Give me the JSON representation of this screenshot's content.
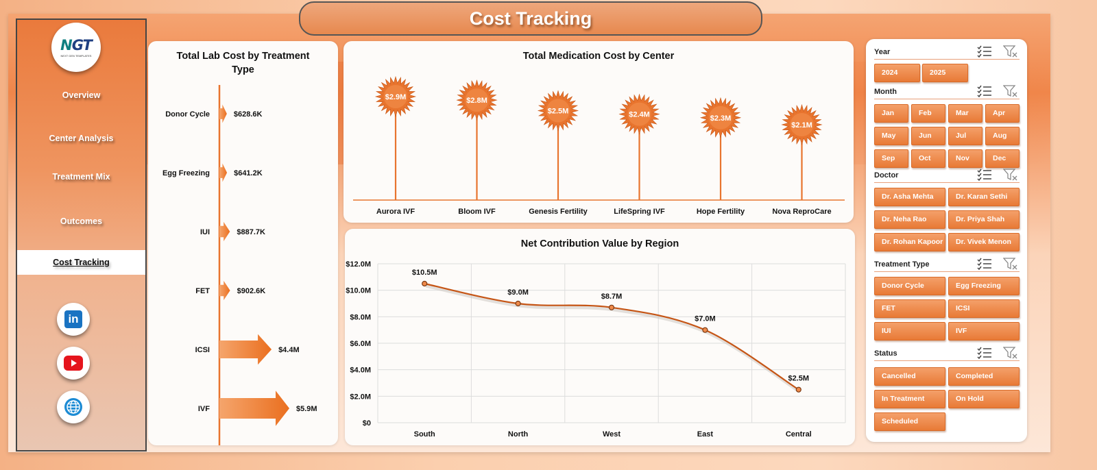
{
  "header": {
    "title": "Cost Tracking"
  },
  "logo": {
    "text_a": "N",
    "text_b": "GT",
    "tagline": "NEXT GEN TEMPLATES"
  },
  "nav": {
    "items": [
      {
        "label": "Overview"
      },
      {
        "label": "Center Analysis"
      },
      {
        "label": "Treatment Mix"
      },
      {
        "label": "Outcomes"
      },
      {
        "label": "Cost Tracking"
      }
    ]
  },
  "social": {
    "linkedin_text": "in"
  },
  "colors": {
    "accent": "#e8742e",
    "accent_dark": "#c65515",
    "panel": "#fdfbf9"
  },
  "slicers": {
    "year": {
      "title": "Year",
      "items": [
        "2024",
        "2025"
      ]
    },
    "month": {
      "title": "Month",
      "items": [
        "Jan",
        "Feb",
        "Mar",
        "Apr",
        "May",
        "Jun",
        "Jul",
        "Aug",
        "Sep",
        "Oct",
        "Nov",
        "Dec"
      ]
    },
    "doctor": {
      "title": "Doctor",
      "items": [
        "Dr. Asha Mehta",
        "Dr. Karan Sethi",
        "Dr. Neha Rao",
        "Dr. Priya Shah",
        "Dr. Rohan Kapoor",
        "Dr. Vivek Menon"
      ]
    },
    "treatment": {
      "title": "Treatment Type",
      "items": [
        "Donor Cycle",
        "Egg Freezing",
        "FET",
        "ICSI",
        "IUI",
        "IVF"
      ]
    },
    "status": {
      "title": "Status",
      "items": [
        "Cancelled",
        "Completed",
        "In Treatment",
        "On Hold",
        "Scheduled"
      ]
    }
  },
  "chart_data": [
    {
      "type": "bar",
      "orientation": "horizontal",
      "title": "Total Lab Cost by Treatment Type",
      "categories": [
        "Donor Cycle",
        "Egg Freezing",
        "IUI",
        "FET",
        "ICSI",
        "IVF"
      ],
      "values": [
        628.6,
        641.2,
        887.7,
        902.6,
        4400,
        5900
      ],
      "unit": "$K",
      "labels": [
        "$628.6K",
        "$641.2K",
        "$887.7K",
        "$902.6K",
        "$4.4M",
        "$5.9M"
      ]
    },
    {
      "type": "bar",
      "style": "lollipop",
      "title": "Total Medication Cost by Center",
      "categories": [
        "Aurora IVF",
        "Bloom IVF",
        "Genesis Fertility",
        "LifeSpring IVF",
        "Hope Fertility",
        "Nova ReproCare"
      ],
      "values": [
        2.9,
        2.8,
        2.5,
        2.4,
        2.3,
        2.1
      ],
      "unit": "$M",
      "labels": [
        "$2.9M",
        "$2.8M",
        "$2.5M",
        "$2.4M",
        "$2.3M",
        "$2.1M"
      ]
    },
    {
      "type": "line",
      "title": "Net Contribution Value by Region",
      "categories": [
        "South",
        "North",
        "West",
        "East",
        "Central"
      ],
      "values": [
        10.5,
        9.0,
        8.7,
        7.0,
        2.5
      ],
      "unit": "$M",
      "labels": [
        "$10.5M",
        "$9.0M",
        "$8.7M",
        "$7.0M",
        "$2.5M"
      ],
      "ylim": [
        0,
        12
      ],
      "yticks": [
        "$0",
        "$2.0M",
        "$4.0M",
        "$6.0M",
        "$8.0M",
        "$10.0M",
        "$12.0M"
      ],
      "grid": true
    }
  ]
}
